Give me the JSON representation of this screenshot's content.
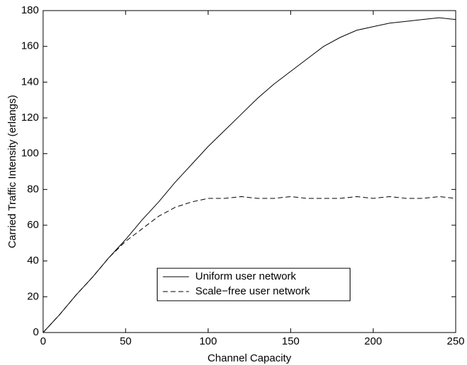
{
  "chart_data": {
    "type": "line",
    "xlabel": "Channel Capacity",
    "ylabel": "Carried Traffic Intensity (erlangs)",
    "x": [
      0,
      10,
      20,
      30,
      40,
      50,
      60,
      70,
      80,
      90,
      100,
      110,
      120,
      130,
      140,
      150,
      160,
      170,
      180,
      190,
      200,
      210,
      220,
      230,
      240,
      250
    ],
    "series": [
      {
        "name": "Uniform user network",
        "color": "#000000",
        "dash": "solid",
        "values": [
          0,
          10,
          21,
          31,
          42,
          52,
          63,
          73,
          84,
          94,
          104,
          113,
          122,
          131,
          139,
          146,
          153,
          160,
          165,
          169,
          171,
          173,
          174,
          175,
          176,
          175
        ]
      },
      {
        "name": "Scale−free user network",
        "color": "#000000",
        "dash": "dashed",
        "values": [
          0,
          10,
          21,
          31,
          42,
          51,
          58,
          65,
          70,
          73,
          75,
          75,
          76,
          75,
          75,
          76,
          75,
          75,
          75,
          76,
          75,
          76,
          75,
          75,
          76,
          75
        ]
      }
    ],
    "xlim": [
      0,
      250
    ],
    "xticks": [
      0,
      50,
      100,
      150,
      200,
      250
    ],
    "ylim": [
      0,
      180
    ],
    "yticks": [
      0,
      20,
      40,
      60,
      80,
      100,
      120,
      140,
      160,
      180
    ],
    "legend": "lower center"
  }
}
